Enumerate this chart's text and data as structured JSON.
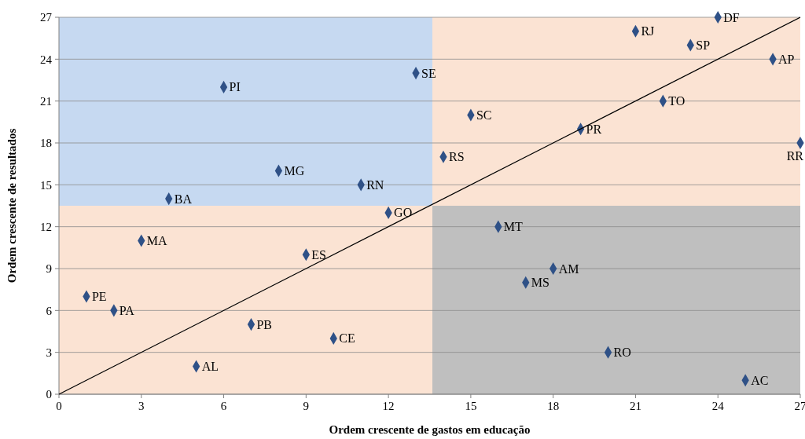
{
  "chart_data": {
    "type": "scatter",
    "xlabel": "Ordem crescente de gastos em educação",
    "ylabel": "Ordem crescente de resultados",
    "xlim": [
      0,
      27
    ],
    "ylim": [
      0,
      27
    ],
    "xticks": [
      0,
      3,
      6,
      9,
      12,
      15,
      18,
      21,
      24,
      27
    ],
    "yticks": [
      0,
      3,
      6,
      9,
      12,
      15,
      18,
      21,
      24,
      27
    ],
    "grid": "y",
    "marker": "diamond",
    "bands": [
      {
        "axis": "y",
        "from": 13.5,
        "to": 27,
        "color": "#c6d9f1"
      },
      {
        "axis": "x",
        "from": 13.6,
        "to": 27,
        "color": "#bfbfbf"
      }
    ],
    "series": [
      {
        "color": "#2f5187",
        "x": [
          1,
          2,
          3,
          4,
          5,
          6,
          7,
          8,
          9,
          10,
          11,
          12,
          13,
          14,
          15,
          16,
          17,
          18,
          19,
          20,
          21,
          22,
          23,
          24,
          25,
          26,
          27
        ],
        "values": [
          7,
          6,
          11,
          14,
          2,
          22,
          5,
          16,
          10,
          4,
          15,
          13,
          23,
          17,
          20,
          12,
          8,
          9,
          19,
          3,
          26,
          21,
          25,
          27,
          1,
          24,
          18
        ]
      },
      {
        "type": "line",
        "color": "#000000",
        "marker": "none",
        "x": [
          0,
          9,
          18,
          27
        ],
        "values": [
          0,
          9,
          18,
          27
        ]
      }
    ],
    "annotations": [
      {
        "text": "PE",
        "x": 1,
        "y": 7
      },
      {
        "text": "PA",
        "x": 2,
        "y": 6
      },
      {
        "text": "MA",
        "x": 3,
        "y": 11
      },
      {
        "text": "BA",
        "x": 4,
        "y": 14
      },
      {
        "text": "AL",
        "x": 5,
        "y": 2
      },
      {
        "text": "PI",
        "x": 6,
        "y": 22
      },
      {
        "text": "PB",
        "x": 7,
        "y": 5
      },
      {
        "text": "MG",
        "x": 8,
        "y": 16
      },
      {
        "text": "ES",
        "x": 9,
        "y": 10
      },
      {
        "text": "CE",
        "x": 10,
        "y": 4
      },
      {
        "text": "RN",
        "x": 11,
        "y": 15
      },
      {
        "text": "GO",
        "x": 12,
        "y": 13
      },
      {
        "text": "SE",
        "x": 13,
        "y": 23
      },
      {
        "text": "RS",
        "x": 14,
        "y": 17
      },
      {
        "text": "SC",
        "x": 15,
        "y": 20
      },
      {
        "text": "MT",
        "x": 16,
        "y": 12
      },
      {
        "text": "MS",
        "x": 17,
        "y": 8
      },
      {
        "text": "AM",
        "x": 18,
        "y": 9
      },
      {
        "text": "PR",
        "x": 19,
        "y": 19
      },
      {
        "text": "RO",
        "x": 20,
        "y": 3
      },
      {
        "text": "RJ",
        "x": 21,
        "y": 26
      },
      {
        "text": "TO",
        "x": 22,
        "y": 21
      },
      {
        "text": "SP",
        "x": 23,
        "y": 25
      },
      {
        "text": "DF",
        "x": 24,
        "y": 27
      },
      {
        "text": "AC",
        "x": 25,
        "y": 1
      },
      {
        "text": "AP",
        "x": 26,
        "y": 24
      },
      {
        "text": "RR",
        "x": 27,
        "y": 18
      }
    ]
  }
}
